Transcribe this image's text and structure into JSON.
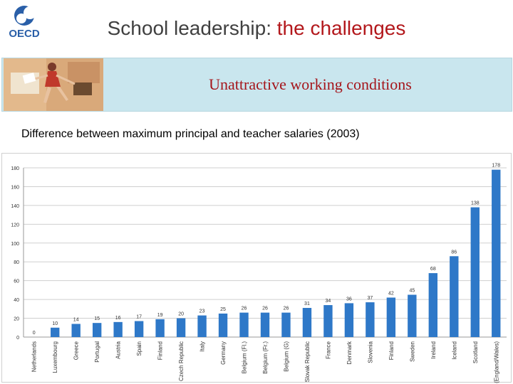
{
  "header": {
    "logo_text": "OECD",
    "title_part1": "School leadership: ",
    "title_part2": "the challenges"
  },
  "banner": {
    "text": "Unattractive working conditions"
  },
  "colors": {
    "title_gray": "#404040",
    "title_red": "#b3181c",
    "banner_bg": "#c9e6ee",
    "bar_blue": "#2e78c8"
  },
  "chart_data": {
    "type": "bar",
    "title": "Difference between maximum principal and teacher salaries (2003)",
    "xlabel": "",
    "ylabel": "",
    "ylim": [
      0,
      180
    ],
    "yticks": [
      0,
      20,
      40,
      60,
      80,
      100,
      120,
      140,
      160,
      180
    ],
    "grid": true,
    "categories": [
      "Netherlands",
      "Luxembourg",
      "Greece",
      "Portugal",
      "Austria",
      "Spain",
      "Finland",
      "Czech Republic",
      "Italy",
      "Germany",
      "Belgium (Fl.)",
      "Belgium (Fr.)",
      "Belgium (G)",
      "Slovak Republic",
      "France",
      "Denmark",
      "Slovenia",
      "Finland",
      "Sweden",
      "Ireland",
      "Iceland",
      "Scotland",
      "UK (England/Wales)"
    ],
    "values": [
      0,
      10,
      14,
      15,
      16,
      17,
      19,
      20,
      23,
      25,
      26,
      26,
      26,
      31,
      34,
      36,
      37,
      42,
      45,
      68,
      86,
      138,
      178
    ],
    "data_labels": [
      "0",
      "10",
      "14",
      "15",
      "16",
      "17",
      "19",
      "20",
      "23",
      "25",
      "26",
      "26",
      "26",
      "31",
      "34",
      "36",
      "37",
      "42",
      "45",
      "68",
      "86",
      "138",
      "178"
    ]
  }
}
